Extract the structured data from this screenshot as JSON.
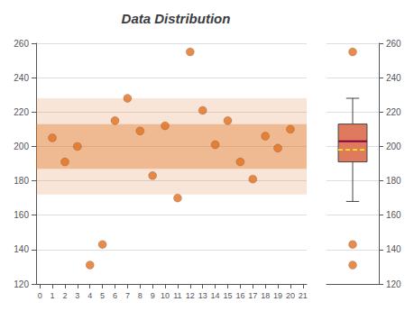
{
  "chart_data": [
    {
      "type": "scatter",
      "title": "Data Distribution",
      "x": [
        1,
        2,
        3,
        4,
        5,
        6,
        7,
        8,
        9,
        10,
        11,
        12,
        13,
        14,
        15,
        16,
        17,
        18,
        19,
        20
      ],
      "values": [
        205,
        191,
        200,
        131,
        143,
        215,
        228,
        209,
        183,
        212,
        170,
        255,
        221,
        201,
        215,
        191,
        181,
        206,
        199,
        210
      ],
      "color": "#e07020",
      "marker": "circle",
      "bands": [
        {
          "from": 172,
          "to": 228,
          "color": "#e07020"
        },
        {
          "from": 187,
          "to": 213,
          "color": "#e07020"
        }
      ],
      "xlim": [
        -0.3,
        21.3
      ],
      "xticks": [
        0,
        1,
        2,
        3,
        4,
        5,
        6,
        7,
        8,
        9,
        10,
        11,
        12,
        13,
        14,
        15,
        16,
        17,
        18,
        19,
        20,
        21
      ],
      "ylim": [
        120,
        260
      ],
      "yticks": [
        120,
        140,
        160,
        180,
        200,
        220,
        240,
        260
      ],
      "grid": true
    },
    {
      "type": "box",
      "series": [
        {
          "type": "box",
          "color": "#e07a5f",
          "values": [
            168,
            191,
            203,
            213,
            228
          ]
        },
        {
          "type": "median",
          "color": "#800040",
          "values": [
            203
          ]
        },
        {
          "type": "mean",
          "color": "#ffff00",
          "line_style": "dashed",
          "values": [
            198
          ]
        },
        {
          "type": "scatter",
          "color": "#e07020",
          "marker": "circle",
          "values": [
            131,
            143,
            255
          ]
        }
      ],
      "ylim": [
        120,
        260
      ],
      "yticks": [
        120,
        140,
        160,
        180,
        200,
        220,
        240,
        260
      ],
      "grid": true,
      "tick_labels": "y"
    }
  ]
}
